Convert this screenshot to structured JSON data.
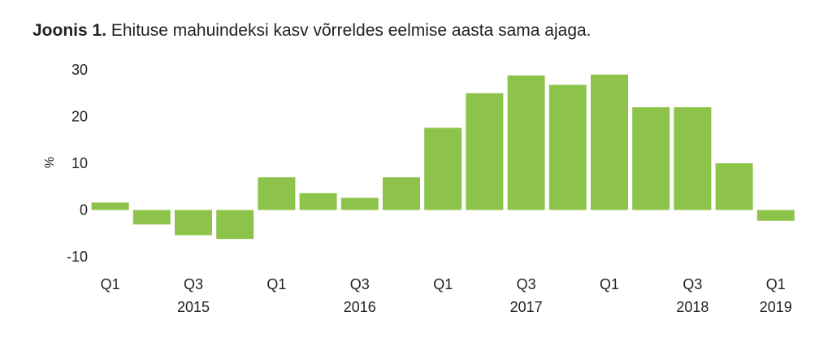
{
  "title": {
    "lead": "Joonis 1.",
    "text": "Ehituse mahuindeksi kasv võrreldes eelmise aasta sama ajaga."
  },
  "chart_data": {
    "type": "bar",
    "ylabel": "%",
    "ylim": [
      -10,
      30
    ],
    "yticks": [
      30,
      20,
      10,
      0,
      -10
    ],
    "grid": false,
    "bar_color": "#8dc34a",
    "categories": [
      "2015 Q1",
      "2015 Q2",
      "2015 Q3",
      "2015 Q4",
      "2016 Q1",
      "2016 Q2",
      "2016 Q3",
      "2016 Q4",
      "2017 Q1",
      "2017 Q2",
      "2017 Q3",
      "2017 Q4",
      "2018 Q1",
      "2018 Q2",
      "2018 Q3",
      "2018 Q4",
      "2019 Q1"
    ],
    "values": [
      1.6,
      -3.1,
      -5.4,
      -6.2,
      7.0,
      3.6,
      2.6,
      7.0,
      17.6,
      25.0,
      28.8,
      26.8,
      29.0,
      22.0,
      22.0,
      10.0,
      -2.3
    ],
    "x_tick_labels": [
      {
        "index": 0,
        "label": "Q1"
      },
      {
        "index": 2,
        "label": "Q3"
      },
      {
        "index": 4,
        "label": "Q1"
      },
      {
        "index": 6,
        "label": "Q3"
      },
      {
        "index": 8,
        "label": "Q1"
      },
      {
        "index": 10,
        "label": "Q3"
      },
      {
        "index": 12,
        "label": "Q1"
      },
      {
        "index": 14,
        "label": "Q3"
      },
      {
        "index": 16,
        "label": "Q1"
      }
    ],
    "year_labels": [
      {
        "index": 2,
        "label": "2015"
      },
      {
        "index": 6,
        "label": "2016"
      },
      {
        "index": 10,
        "label": "2017"
      },
      {
        "index": 14,
        "label": "2018"
      },
      {
        "index": 16,
        "label": "2019"
      }
    ]
  }
}
